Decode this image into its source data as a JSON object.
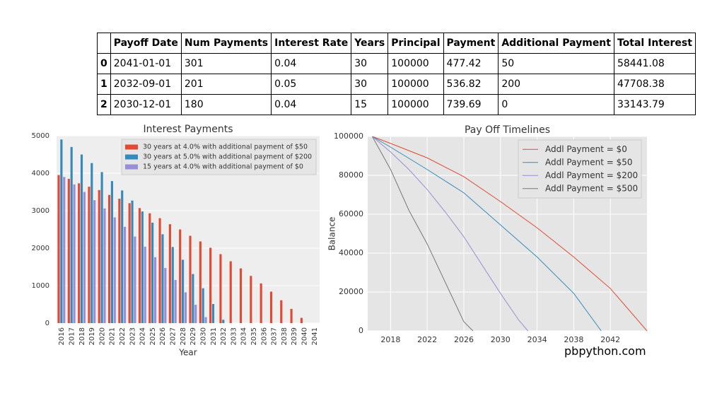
{
  "table": {
    "columns": [
      "Payoff Date",
      "Num Payments",
      "Interest Rate",
      "Years",
      "Principal",
      "Payment",
      "Additional Payment",
      "Total Interest"
    ],
    "index": [
      "0",
      "1",
      "2"
    ],
    "rows": [
      [
        "2041-01-01",
        "301",
        "0.04",
        "30",
        "100000",
        "477.42",
        "50",
        "58441.08"
      ],
      [
        "2032-09-01",
        "201",
        "0.05",
        "30",
        "100000",
        "536.82",
        "200",
        "47708.38"
      ],
      [
        "2030-12-01",
        "180",
        "0.04",
        "15",
        "100000",
        "739.69",
        "0",
        "33143.79"
      ]
    ]
  },
  "chart_data": [
    {
      "type": "bar",
      "title": "Interest Payments",
      "x_label": "Year",
      "categories": [
        "2016",
        "2017",
        "2018",
        "2019",
        "2020",
        "2021",
        "2022",
        "2023",
        "2024",
        "2025",
        "2026",
        "2027",
        "2028",
        "2029",
        "2030",
        "2031",
        "2032",
        "2033",
        "2034",
        "2035",
        "2036",
        "2037",
        "2038",
        "2039",
        "2040",
        "2041"
      ],
      "series": [
        {
          "name": "30 years at 4.0% with additional payment of $50",
          "color": "#e24a33",
          "values": [
            3950,
            3850,
            3730,
            3640,
            3550,
            3420,
            3320,
            3200,
            3070,
            2930,
            2800,
            2640,
            2500,
            2330,
            2180,
            2010,
            1840,
            1650,
            1460,
            1260,
            1060,
            840,
            610,
            380,
            140,
            null
          ]
        },
        {
          "name": "30 years at 5.0% with additional payment of $200",
          "color": "#348abd",
          "values": [
            4900,
            4700,
            4500,
            4270,
            4030,
            3790,
            3540,
            3270,
            2980,
            2680,
            2370,
            2030,
            1690,
            1310,
            930,
            510,
            90,
            null,
            null,
            null,
            null,
            null,
            null,
            null,
            null,
            null
          ]
        },
        {
          "name": "15 years at 4.0% with additional payment of $0",
          "color": "#988ed5",
          "values": [
            3900,
            3700,
            3500,
            3280,
            3060,
            2820,
            2570,
            2310,
            2040,
            1760,
            1470,
            1150,
            820,
            490,
            160,
            null,
            null,
            null,
            null,
            null,
            null,
            null,
            null,
            null,
            null,
            null
          ]
        }
      ],
      "ylim": [
        0,
        5000
      ],
      "yticks": [
        0,
        1000,
        2000,
        3000,
        4000,
        5000
      ],
      "grid": true,
      "legend": "upper-right"
    },
    {
      "type": "line",
      "title": "Pay Off Timelines",
      "y_label": "Balance",
      "series": [
        {
          "name": "Addl Payment = $0",
          "color": "#e24a33",
          "x": [
            2016,
            2018,
            2022,
            2026,
            2030,
            2034,
            2038,
            2042,
            2046
          ],
          "values": [
            100000,
            96400,
            89000,
            79300,
            66500,
            53000,
            38000,
            21800,
            0
          ]
        },
        {
          "name": "Addl Payment = $50",
          "color": "#348abd",
          "x": [
            2016,
            2018,
            2022,
            2026,
            2030,
            2034,
            2038,
            2041
          ],
          "values": [
            100000,
            94500,
            83000,
            71000,
            54500,
            38000,
            19300,
            0
          ]
        },
        {
          "name": "Addl Payment = $200",
          "color": "#988ed5",
          "x": [
            2016,
            2018,
            2020,
            2022,
            2024,
            2026,
            2028,
            2030,
            2032,
            2033
          ],
          "values": [
            100000,
            92000,
            83000,
            72700,
            61000,
            48400,
            33800,
            19300,
            5500,
            0
          ]
        },
        {
          "name": "Addl Payment = $500",
          "color": "#777777",
          "x": [
            2016,
            2018,
            2020,
            2022,
            2024,
            2026,
            2027
          ],
          "values": [
            100000,
            83000,
            62000,
            44700,
            24700,
            4700,
            0
          ]
        }
      ],
      "xlim": [
        2015.5,
        2046
      ],
      "xticks": [
        2018,
        2022,
        2026,
        2030,
        2034,
        2038,
        2042
      ],
      "ylim": [
        0,
        100000
      ],
      "yticks": [
        0,
        20000,
        40000,
        60000,
        80000,
        100000
      ],
      "grid": true,
      "legend": "upper-right"
    }
  ],
  "footer": "pbpython.com"
}
